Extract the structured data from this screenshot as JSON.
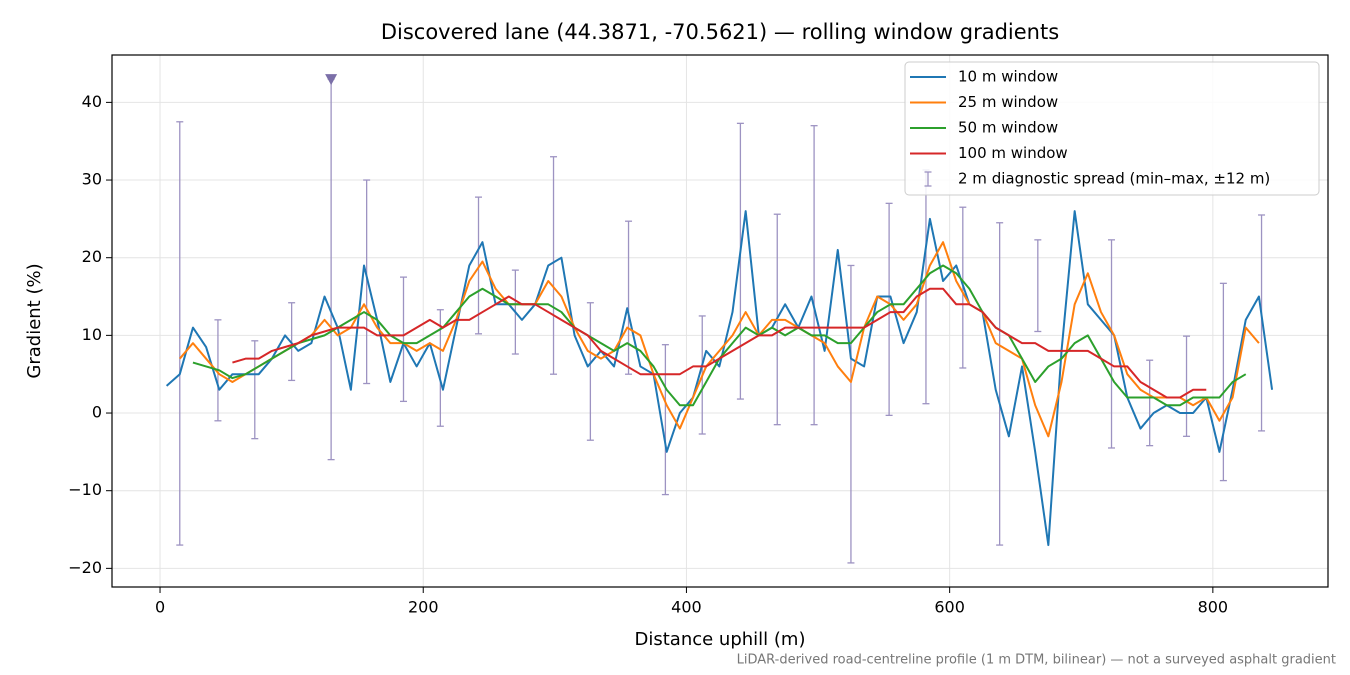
{
  "chart_data": {
    "type": "line",
    "title": "Discovered lane (44.3871, -70.5621) — rolling window gradients",
    "x_label": "Distance uphill (m)",
    "y_label": "Gradient (%)",
    "footnote": "LiDAR-derived road-centreline profile (1 m DTM, bilinear) — not a surveyed asphalt gradient",
    "xlim": [
      -36.5,
      887.5
    ],
    "ylim": [
      -22.4,
      46.1
    ],
    "xticks": [
      0,
      200,
      400,
      600,
      800
    ],
    "yticks": [
      {
        "value": -20,
        "label": "−20"
      },
      {
        "value": -10,
        "label": "−10"
      },
      0,
      10,
      20,
      30,
      40
    ],
    "grid": true,
    "legend": "upper right",
    "x": [
      5,
      15,
      25,
      35,
      45,
      55,
      65,
      75,
      85,
      95,
      105,
      115,
      125,
      135,
      145,
      155,
      165,
      175,
      185,
      195,
      205,
      215,
      225,
      235,
      245,
      255,
      265,
      275,
      285,
      295,
      305,
      315,
      325,
      335,
      345,
      355,
      365,
      375,
      385,
      395,
      405,
      415,
      425,
      435,
      445,
      455,
      465,
      475,
      485,
      495,
      505,
      515,
      525,
      535,
      545,
      555,
      565,
      575,
      585,
      595,
      605,
      615,
      625,
      635,
      645,
      655,
      665,
      675,
      685,
      695,
      705,
      715,
      725,
      735,
      745,
      755,
      765,
      775,
      785,
      795,
      805,
      815,
      825,
      835,
      845
    ],
    "series": [
      {
        "name": "10 m window",
        "color": "#1f77b4",
        "values": [
          3.5,
          5,
          11,
          8.5,
          3,
          5,
          5,
          5,
          7,
          10,
          8,
          9,
          15,
          11,
          3,
          19,
          12,
          4,
          9,
          6,
          9,
          3,
          11,
          19,
          22,
          14,
          14,
          12,
          14,
          19,
          20,
          10,
          6,
          8,
          6,
          13.5,
          6,
          5,
          -5,
          0,
          2,
          8,
          6,
          13,
          26,
          10,
          11,
          14,
          11,
          15,
          8,
          21,
          7,
          6,
          15,
          15,
          9,
          13,
          25,
          17,
          19,
          14,
          13,
          3,
          -3,
          6,
          -5,
          -17,
          8,
          26,
          14,
          12,
          10,
          2,
          -2,
          0,
          1,
          0,
          0,
          2,
          -5,
          3,
          12,
          15,
          3
        ]
      },
      {
        "name": "25 m window",
        "color": "#ff7f0e",
        "values": [
          null,
          7,
          9,
          7,
          5,
          4,
          5,
          6,
          7,
          8,
          9,
          10,
          12,
          10,
          11,
          14,
          11,
          9,
          9,
          8,
          9,
          8,
          12,
          17,
          19.5,
          16,
          14,
          14,
          14,
          17,
          15,
          11,
          8,
          7,
          8,
          11,
          10,
          5,
          1,
          -2,
          2,
          6,
          8,
          10,
          13,
          10,
          12,
          12,
          11,
          10,
          9,
          6,
          4,
          11,
          15,
          14,
          12,
          14,
          19,
          22,
          17,
          14,
          13,
          9,
          8,
          7,
          1,
          -3,
          4,
          14,
          18,
          13,
          10,
          5,
          3,
          2,
          2,
          2,
          1,
          2,
          -1,
          2,
          11,
          9,
          null
        ]
      },
      {
        "name": "50 m window",
        "color": "#2ca02c",
        "values": [
          null,
          null,
          6.5,
          6,
          5.5,
          4.5,
          5,
          6,
          7,
          8,
          9,
          9.5,
          10,
          11,
          12,
          13,
          12,
          10,
          9,
          9,
          10,
          11,
          13,
          15,
          16,
          15,
          14,
          14,
          14,
          14,
          13,
          11,
          10,
          9,
          8,
          9,
          8,
          6,
          3,
          1,
          1,
          4,
          7,
          9,
          11,
          10,
          11,
          10,
          11,
          10,
          10,
          9,
          9,
          11,
          13,
          14,
          14,
          16,
          18,
          19,
          18,
          16,
          13,
          11,
          10,
          7,
          4,
          6,
          7,
          9,
          10,
          7,
          4,
          2,
          2,
          2,
          1,
          1,
          2,
          2,
          2,
          4,
          5,
          null,
          null
        ]
      },
      {
        "name": "100 m window",
        "color": "#d62728",
        "values": [
          null,
          null,
          null,
          null,
          null,
          6.5,
          7,
          7,
          8,
          8.5,
          9,
          10,
          10.5,
          11,
          11,
          11,
          10,
          10,
          10,
          11,
          12,
          11,
          12,
          12,
          13,
          14,
          15,
          14,
          14,
          13,
          12,
          11,
          10,
          8,
          7,
          6,
          5,
          5,
          5,
          5,
          6,
          6,
          7,
          8,
          9,
          10,
          10,
          11,
          11,
          11,
          11,
          11,
          11,
          11,
          12,
          13,
          13,
          15,
          16,
          16,
          14,
          14,
          13,
          11,
          10,
          9,
          9,
          8,
          8,
          8,
          8,
          7,
          6,
          6,
          4,
          3,
          2,
          2,
          3,
          3,
          null,
          null,
          null,
          null,
          null
        ]
      }
    ],
    "errorbars": {
      "name": "2 m diagnostic spread (min–max, ±12 m)",
      "color": "#9d93c2",
      "x": [
        15,
        44,
        72,
        100,
        130,
        157,
        185,
        213,
        242,
        270,
        299,
        327,
        356,
        384,
        412,
        441,
        469,
        497,
        525,
        554,
        582,
        610,
        638,
        667,
        723,
        752,
        780,
        808,
        837
      ],
      "low": [
        -17,
        -1,
        -3.3,
        4.2,
        -6,
        3.8,
        1.5,
        -1.7,
        10.2,
        7.6,
        5,
        -3.5,
        5,
        -10.5,
        -2.7,
        1.8,
        -1.5,
        -1.5,
        -19.3,
        -0.3,
        1.2,
        5.8,
        -17,
        10.5,
        -4.5,
        -4.2,
        -3,
        -8.7,
        -2.3
      ],
      "high": [
        37.5,
        12,
        9.3,
        14.2,
        43,
        30,
        17.5,
        13.3,
        27.8,
        18.4,
        33,
        14.2,
        24.7,
        8.8,
        12.5,
        37.3,
        25.6,
        37,
        19,
        27,
        31.3,
        26.5,
        24.5,
        22.3,
        22.3,
        6.8,
        9.9,
        16.7,
        25.5
      ]
    },
    "marker_points": {
      "color": "#7b6fa8",
      "x": [
        130
      ],
      "y": [
        43
      ]
    }
  }
}
